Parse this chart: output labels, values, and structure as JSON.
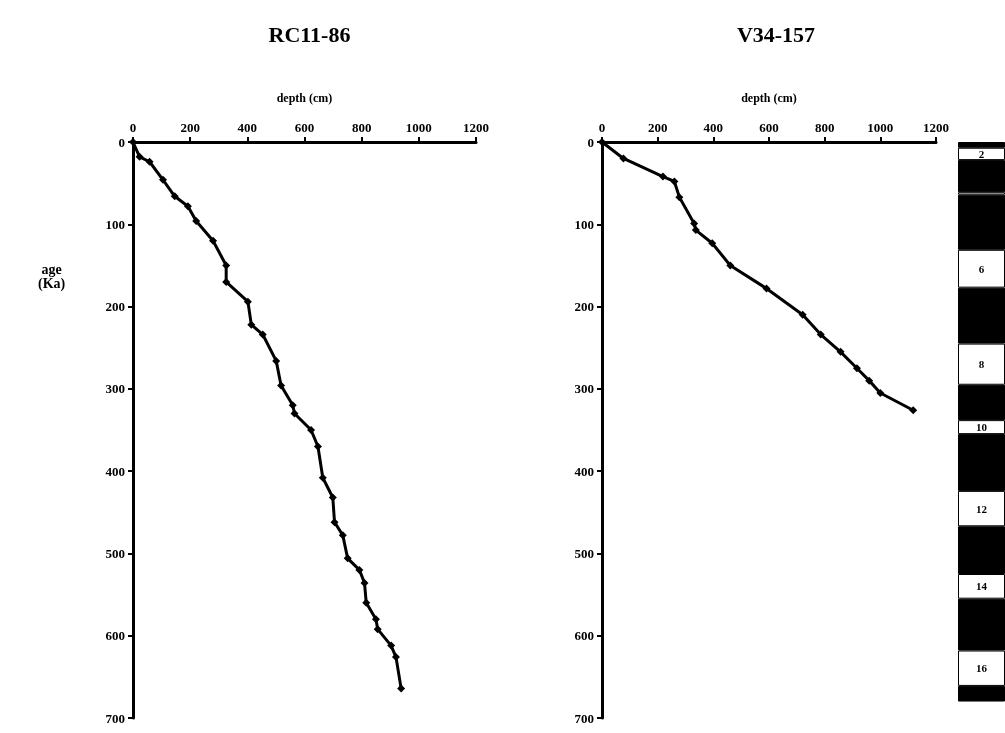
{
  "chart_data": [
    {
      "type": "line",
      "title": "RC11-86",
      "xlabel": "depth (cm)",
      "ylabel": "age\n(Ka)",
      "marker": "diamond",
      "line_style": "solid",
      "grid": false,
      "legend": false,
      "xlim": [
        0,
        1200
      ],
      "xticks": [
        0,
        200,
        400,
        600,
        800,
        1000,
        1200
      ],
      "ylim": [
        700,
        0
      ],
      "yticks": [
        0,
        100,
        200,
        300,
        400,
        500,
        600,
        700
      ],
      "series": [
        {
          "color": "#000000",
          "x": [
            0,
            23,
            58,
            105,
            146,
            192,
            221,
            280,
            326,
            326,
            402,
            414,
            454,
            501,
            518,
            559,
            565,
            623,
            647,
            664,
            699,
            705,
            734,
            751,
            792,
            810,
            816,
            850,
            856,
            903,
            920,
            938
          ],
          "values": [
            0,
            18,
            24,
            46,
            66,
            78,
            96,
            120,
            150,
            170,
            194,
            222,
            234,
            266,
            296,
            320,
            330,
            350,
            370,
            408,
            432,
            462,
            478,
            506,
            520,
            536,
            560,
            580,
            592,
            612,
            626,
            664
          ]
        }
      ]
    },
    {
      "type": "line",
      "title": "V34-157",
      "xlabel": "depth (cm)",
      "marker": "diamond",
      "line_style": "solid",
      "grid": false,
      "legend": false,
      "xlim": [
        0,
        1200
      ],
      "xticks": [
        0,
        200,
        400,
        600,
        800,
        1000,
        1200
      ],
      "ylim": [
        700,
        0
      ],
      "yticks": [
        0,
        100,
        200,
        300,
        400,
        500,
        600,
        700
      ],
      "series": [
        {
          "color": "#000000",
          "x": [
            0,
            77,
            219,
            260,
            278,
            331,
            337,
            396,
            461,
            591,
            721,
            786,
            857,
            916,
            960,
            1000,
            1118
          ],
          "values": [
            0,
            20,
            42,
            48,
            67,
            99,
            107,
            123,
            150,
            178,
            210,
            234,
            255,
            275,
            290,
            305,
            326
          ]
        }
      ]
    },
    {
      "type": "bar",
      "stacked": true,
      "categories": [
        null
      ],
      "ylim": [
        700,
        0
      ],
      "tick_labels": false,
      "series": [
        {
          "color": "#000000",
          "values": [
            7
          ]
        },
        {
          "name": "2",
          "color": "#ffffff",
          "values": [
            15
          ]
        },
        {
          "color": "#000000",
          "values": [
            39
          ]
        },
        {
          "color": "#ffffff",
          "values": [
            3
          ]
        },
        {
          "color": "#000000",
          "values": [
            67
          ]
        },
        {
          "name": "6",
          "color": "#ffffff",
          "values": [
            46
          ]
        },
        {
          "color": "#000000",
          "values": [
            68
          ]
        },
        {
          "name": "8",
          "color": "#ffffff",
          "values": [
            50
          ]
        },
        {
          "color": "#000000",
          "values": [
            43
          ]
        },
        {
          "name": "10",
          "color": "#ffffff",
          "values": [
            17
          ]
        },
        {
          "color": "#000000",
          "values": [
            69
          ]
        },
        {
          "name": "12",
          "color": "#ffffff",
          "values": [
            43
          ]
        },
        {
          "color": "#000000",
          "values": [
            58
          ]
        },
        {
          "name": "14",
          "color": "#ffffff",
          "values": [
            30
          ]
        },
        {
          "color": "#000000",
          "values": [
            63
          ]
        },
        {
          "name": "16",
          "color": "#ffffff",
          "values": [
            43
          ]
        },
        {
          "color": "#000000",
          "values": [
            19
          ]
        }
      ]
    }
  ]
}
